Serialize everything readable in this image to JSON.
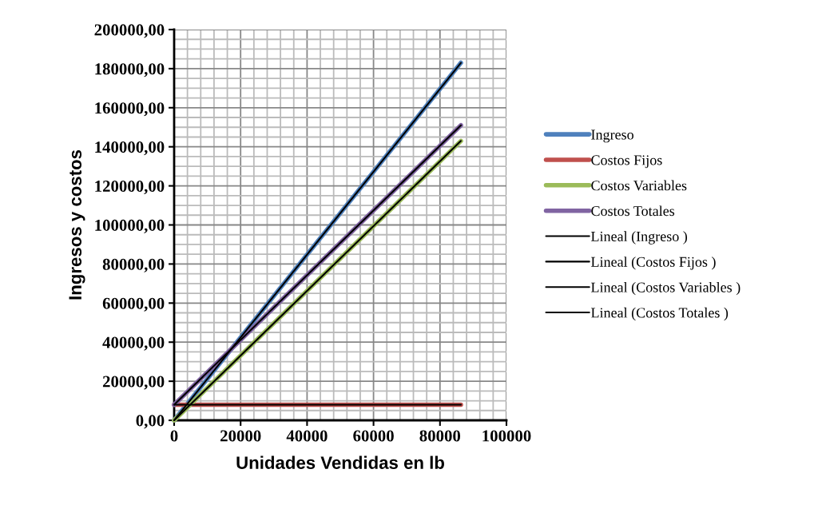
{
  "chart_data": {
    "type": "line",
    "xlabel": "Unidades Vendidas en lb",
    "ylabel": "Ingresos y costos",
    "xlim": [
      0,
      100000
    ],
    "xticks": [
      0,
      20000,
      40000,
      60000,
      80000,
      100000
    ],
    "ylim": [
      0,
      200000
    ],
    "yticks": [
      {
        "value": 0,
        "label": "0,00"
      },
      {
        "value": 20000,
        "label": "20000,00"
      },
      {
        "value": 40000,
        "label": "40000,00"
      },
      {
        "value": 60000,
        "label": "60000,00"
      },
      {
        "value": 80000,
        "label": "80000,00"
      },
      {
        "value": 100000,
        "label": "100000,00"
      },
      {
        "value": 120000,
        "label": "120000,00"
      },
      {
        "value": 140000,
        "label": "140000,00"
      },
      {
        "value": 160000,
        "label": "160000,00"
      },
      {
        "value": 180000,
        "label": "180000,00"
      },
      {
        "value": 200000,
        "label": "200000,00"
      }
    ],
    "grid": true,
    "legend": "right",
    "marker": "none",
    "line_style": "solid",
    "x": [
      0,
      86300
    ],
    "series": [
      {
        "name": "Ingreso",
        "color": "#4f81bd",
        "values": [
          0,
          183000
        ]
      },
      {
        "name": "Costos Fijos",
        "color": "#c0504d",
        "values": [
          8000,
          8000
        ]
      },
      {
        "name": "Costos Variables",
        "color": "#9bbb59",
        "values": [
          0,
          143000
        ]
      },
      {
        "name": "Costos Totales",
        "color": "#8064a2",
        "values": [
          8000,
          151000
        ]
      },
      {
        "name": "Lineal (Ingreso )",
        "color": "#000000",
        "values": [
          0,
          183000
        ]
      },
      {
        "name": "Lineal (Costos Fijos )",
        "color": "#000000",
        "values": [
          8000,
          8000
        ]
      },
      {
        "name": "Lineal (Costos Variables )",
        "color": "#000000",
        "values": [
          0,
          143000
        ]
      },
      {
        "name": "Lineal (Costos Totales )",
        "color": "#000000",
        "values": [
          8000,
          151000
        ]
      }
    ]
  }
}
